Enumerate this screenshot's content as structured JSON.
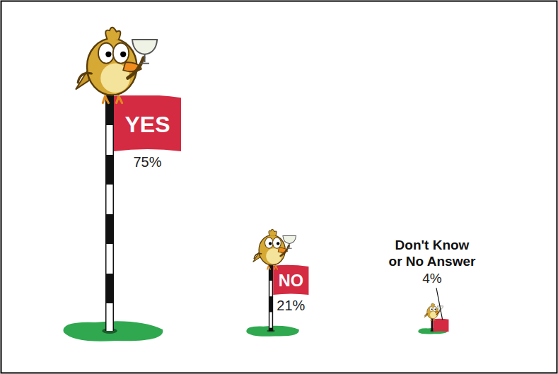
{
  "chart_data": {
    "type": "bar",
    "categories": [
      "YES",
      "NO",
      "Don't Know or No Answer"
    ],
    "values": [
      75,
      21,
      4
    ],
    "value_labels": [
      "75%",
      "21%",
      "4%"
    ],
    "ylim": [
      0,
      75
    ],
    "color": "#d42a42",
    "data_labels": true,
    "tick_labels": false
  }
}
